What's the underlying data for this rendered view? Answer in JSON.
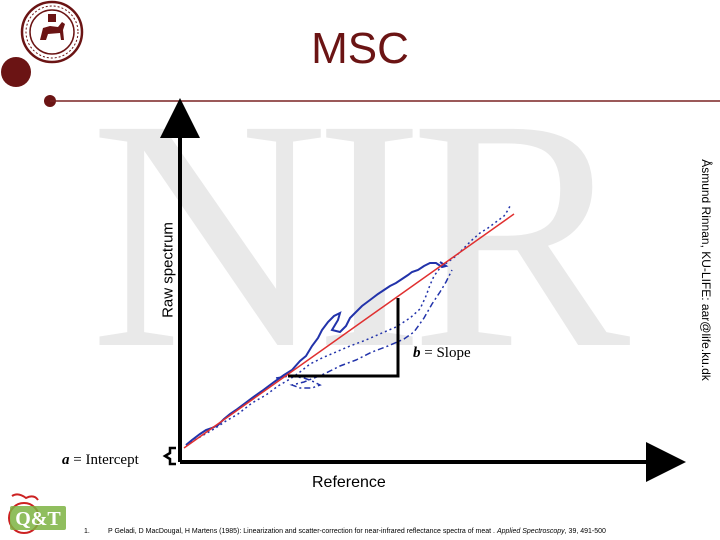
{
  "slide": {
    "title": "MSC",
    "watermark": "NIR",
    "side_credit": "Åsmund Rinnan, KU-LIFE: aar@life.ku.dk"
  },
  "diagram": {
    "y_axis_label": "Raw spectrum",
    "x_axis_label": "Reference",
    "slope_symbol": "b",
    "slope_text": " = Slope",
    "intercept_symbol": "a",
    "intercept_text": " = Intercept",
    "colors": {
      "axes": "#000000",
      "regression_line": "#e03030",
      "spectrum": "#2233aa",
      "title": "#6b1414",
      "watermark": "#e9e9e9"
    }
  },
  "reference": {
    "number": "1.",
    "authors_year": "P Geladi, D MacDougal, H Martens (1985): Linearization and scatter-correction for near-infrared reflectance spectra of meat . ",
    "journal": "Applied Spectroscopy",
    "pages": ", 39, 491-500"
  },
  "logos": {
    "university_seal": "university-seal",
    "qt_logo_text": "Q&T"
  }
}
